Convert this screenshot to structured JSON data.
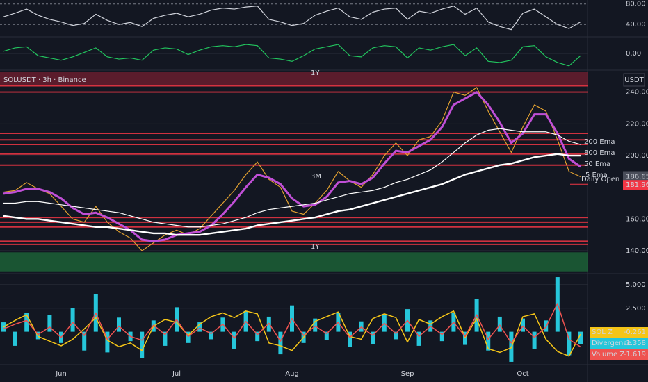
{
  "chart_data": [
    {
      "type": "line",
      "ylim": [
        20,
        85
      ],
      "yticks": [
        {
          "value": 80,
          "label": "80.00"
        },
        {
          "value": 40,
          "label": "40.00"
        }
      ],
      "series": [
        {
          "color": "#d1d4dc",
          "values": [
            55,
            62,
            70,
            58,
            50,
            45,
            38,
            42,
            60,
            48,
            40,
            44,
            36,
            52,
            58,
            62,
            55,
            60,
            68,
            72,
            70,
            74,
            76,
            50,
            45,
            38,
            42,
            58,
            66,
            72,
            55,
            50,
            64,
            70,
            72,
            50,
            66,
            62,
            70,
            76,
            60,
            72,
            45,
            36,
            30,
            62,
            70,
            55,
            40,
            32,
            45
          ]
        }
      ]
    },
    {
      "type": "line",
      "ylim": [
        -1.3,
        1.3
      ],
      "yticks": [
        {
          "value": 0,
          "label": "0.00"
        }
      ],
      "series": [
        {
          "color": "#22c55e",
          "values": [
            0.2,
            0.5,
            0.6,
            -0.2,
            -0.4,
            -0.6,
            -0.3,
            0.1,
            0.5,
            -0.3,
            -0.5,
            -0.4,
            -0.6,
            0.3,
            0.5,
            0.4,
            -0.1,
            0.3,
            0.6,
            0.7,
            0.6,
            0.8,
            0.7,
            -0.4,
            -0.5,
            -0.7,
            -0.2,
            0.4,
            0.6,
            0.8,
            -0.2,
            -0.3,
            0.5,
            0.7,
            0.6,
            -0.4,
            0.5,
            0.3,
            0.6,
            0.8,
            -0.2,
            0.5,
            -0.7,
            -0.8,
            -0.6,
            0.6,
            0.7,
            -0.3,
            -0.8,
            -1.1,
            -0.2
          ]
        }
      ]
    },
    {
      "type": "line",
      "title": "SOLUSDT · 3h · Binance",
      "unit": "USDT",
      "ylim": [
        126,
        253
      ],
      "yticks": [
        {
          "value": 240,
          "label": "240.00"
        },
        {
          "value": 220,
          "label": "220.00"
        },
        {
          "value": 200,
          "label": "200.00"
        },
        {
          "value": 160,
          "label": "160.00"
        },
        {
          "value": 140,
          "label": "140.00"
        }
      ],
      "series": [
        {
          "color": "#e0a030",
          "values": [
            177,
            178,
            183,
            179,
            176,
            168,
            160,
            158,
            168,
            158,
            152,
            148,
            140,
            145,
            150,
            153,
            150,
            154,
            162,
            170,
            178,
            188,
            196,
            185,
            180,
            165,
            163,
            170,
            178,
            190,
            184,
            180,
            188,
            200,
            208,
            200,
            210,
            212,
            222,
            240,
            238,
            243,
            228,
            215,
            202,
            218,
            232,
            228,
            210,
            190,
            186.65
          ]
        },
        {
          "name": "50 Ema",
          "color": "#c04fd6",
          "values": [
            176,
            177,
            179,
            179,
            177,
            173,
            167,
            163,
            164,
            161,
            157,
            153,
            147,
            146,
            147,
            150,
            151,
            152,
            156,
            163,
            171,
            180,
            188,
            186,
            182,
            173,
            168,
            169,
            174,
            183,
            184,
            182,
            186,
            195,
            203,
            202,
            206,
            210,
            218,
            232,
            236,
            240,
            232,
            221,
            208,
            214,
            226,
            226,
            214,
            198,
            193
          ]
        },
        {
          "name": "200 Ema",
          "color": "#ffffff",
          "values": [
            170,
            170,
            171,
            171,
            170,
            169,
            168,
            167,
            166,
            165,
            164,
            162,
            160,
            158,
            157,
            156,
            155,
            155,
            156,
            157,
            159,
            161,
            164,
            166,
            167,
            168,
            169,
            170,
            172,
            174,
            176,
            177,
            178,
            180,
            183,
            185,
            188,
            191,
            196,
            202,
            208,
            213,
            216,
            217,
            216,
            215,
            215,
            215,
            213,
            209,
            207
          ]
        },
        {
          "name": "800 Ema",
          "color": "#ffffff",
          "values": [
            162,
            161,
            160,
            160,
            159,
            158,
            157,
            156,
            155,
            155,
            154,
            153,
            152,
            151,
            151,
            150,
            150,
            150,
            151,
            152,
            153,
            154,
            156,
            157,
            158,
            159,
            160,
            161,
            163,
            165,
            166,
            168,
            170,
            172,
            174,
            176,
            178,
            180,
            182,
            185,
            188,
            190,
            192,
            194,
            195,
            197,
            199,
            200,
            201,
            200,
            200
          ]
        }
      ],
      "daily_open": {
        "label": "Daily Open",
        "value": 181.96
      },
      "annotations": [
        "5 Ema",
        "3M",
        "1Y",
        "1Y"
      ],
      "resistance_levels": [
        244,
        240,
        214,
        210,
        207,
        201,
        194,
        161,
        158,
        155,
        146,
        144
      ],
      "support_zone": [
        127,
        139
      ]
    },
    {
      "type": "combo",
      "ylim": [
        -3.5,
        6.1
      ],
      "yticks": [
        {
          "value": 5,
          "label": "5.000"
        },
        {
          "value": 2.5,
          "label": "2.500"
        }
      ],
      "categories": [
        null,
        null,
        null,
        null,
        null,
        "Jun",
        null,
        null,
        null,
        null,
        null,
        null,
        null,
        null,
        null,
        "Jul",
        null,
        null,
        null,
        null,
        null,
        null,
        null,
        null,
        null,
        "Aug",
        null,
        null,
        null,
        null,
        null,
        null,
        null,
        null,
        null,
        "Sep",
        null,
        null,
        null,
        null,
        null,
        null,
        null,
        null,
        null,
        "Oct",
        null,
        null,
        null,
        null,
        null
      ],
      "series": [
        {
          "name": "SOL Z",
          "kind": "line",
          "color": "#f5c518",
          "values": [
            0.5,
            1.2,
            1.8,
            -0.5,
            -1.0,
            -1.5,
            -0.8,
            0.3,
            1.5,
            -0.9,
            -1.6,
            -1.2,
            -2.0,
            0.6,
            1.3,
            1.0,
            -0.4,
            0.8,
            1.6,
            2.0,
            1.5,
            2.2,
            1.9,
            -1.2,
            -1.5,
            -2.0,
            -0.6,
            1.1,
            1.6,
            2.1,
            -0.5,
            -0.8,
            1.4,
            1.9,
            1.5,
            -1.1,
            1.3,
            0.8,
            1.6,
            2.2,
            -0.6,
            1.4,
            -1.8,
            -2.2,
            -1.7,
            1.6,
            1.9,
            -0.8,
            -2.1,
            -2.6,
            -0.261
          ]
        },
        {
          "name": "Divergence",
          "kind": "bar",
          "color": "#26c6da",
          "values": [
            1.0,
            -1.5,
            2.0,
            -0.8,
            1.8,
            -1.2,
            2.5,
            -2.0,
            4.0,
            -2.2,
            1.5,
            -1.0,
            -2.8,
            1.2,
            -1.5,
            2.6,
            -1.2,
            1.0,
            -0.8,
            1.5,
            -1.8,
            2.2,
            -1.0,
            1.6,
            -2.4,
            2.8,
            -1.2,
            1.4,
            -0.9,
            2.0,
            -1.6,
            1.1,
            -1.3,
            1.8,
            -0.8,
            2.4,
            -1.5,
            1.2,
            -1.0,
            2.0,
            -1.4,
            3.5,
            -2.0,
            1.6,
            -3.2,
            1.4,
            -1.8,
            1.2,
            5.8,
            -2.5,
            -1.358
          ]
        },
        {
          "name": "Volume Z",
          "kind": "line",
          "color": "#ef5350",
          "values": [
            0.3,
            0.8,
            1.2,
            -0.3,
            0.5,
            -0.6,
            1.0,
            -0.4,
            2.0,
            -0.8,
            0.6,
            -0.5,
            -0.9,
            0.7,
            -0.3,
            1.3,
            -0.5,
            0.4,
            -0.2,
            0.8,
            -0.7,
            1.1,
            -0.3,
            0.9,
            -1.0,
            1.4,
            -0.4,
            0.6,
            -0.2,
            1.0,
            -0.6,
            0.5,
            -0.4,
            0.9,
            -0.2,
            1.2,
            -0.5,
            0.6,
            -0.3,
            1.0,
            -0.5,
            1.8,
            -0.8,
            0.7,
            -1.2,
            0.6,
            -0.6,
            0.5,
            3.0,
            -0.8,
            -1.619
          ]
        }
      ]
    }
  ]
}
